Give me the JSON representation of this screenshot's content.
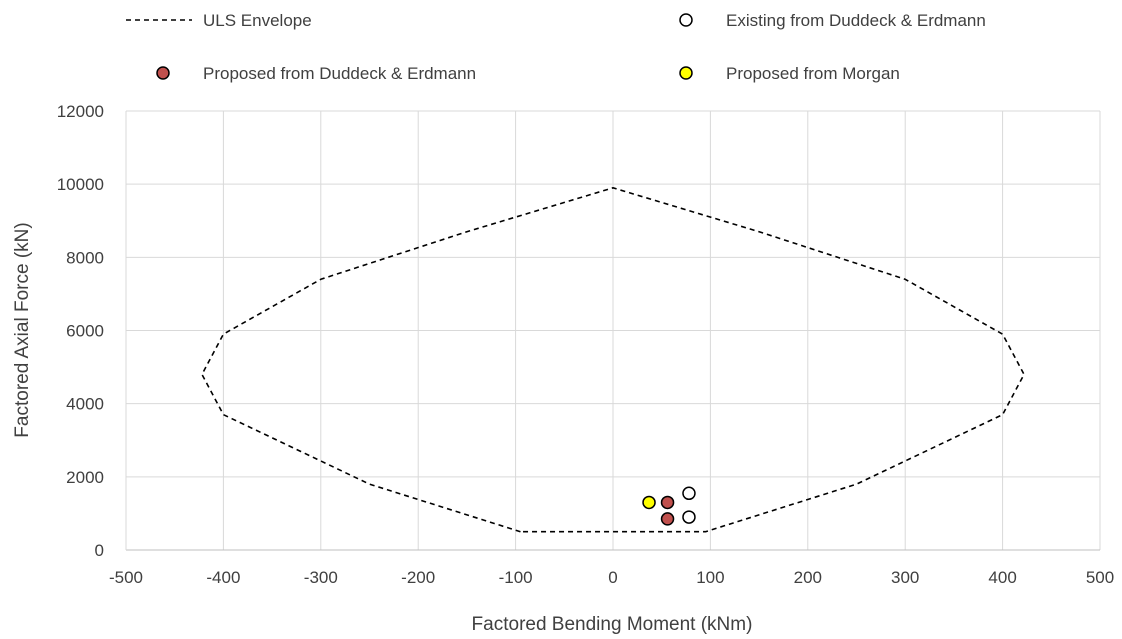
{
  "chart_data": {
    "type": "scatter",
    "title": "",
    "xlabel": "Factored Bending Moment (kNm)",
    "ylabel": "Factored Axial Force (kN)",
    "xlim": [
      -500,
      500
    ],
    "ylim": [
      0,
      12000
    ],
    "x_ticks": [
      -500,
      -400,
      -300,
      -200,
      -100,
      0,
      100,
      200,
      300,
      400,
      500
    ],
    "y_ticks": [
      0,
      2000,
      4000,
      6000,
      8000,
      10000,
      12000
    ],
    "grid": true,
    "legend_position": "top",
    "series": [
      {
        "name": "ULS Envelope",
        "style": "dashed-line",
        "color": "#000000",
        "x": [
          -95,
          -250,
          -400,
          -422,
          -400,
          -300,
          -150,
          0,
          150,
          300,
          400,
          422,
          400,
          250,
          95,
          -95
        ],
        "y": [
          500,
          1800,
          3700,
          4800,
          5900,
          7400,
          8700,
          9900,
          8700,
          7400,
          5900,
          4800,
          3700,
          1800,
          500,
          500
        ]
      },
      {
        "name": "Existing from Duddeck & Erdmann",
        "style": "marker",
        "color": "#ffffff",
        "x": [
          78,
          78
        ],
        "y": [
          1550,
          900
        ]
      },
      {
        "name": "Proposed from Duddeck & Erdmann",
        "style": "marker",
        "color": "#c0504d",
        "x": [
          56,
          56
        ],
        "y": [
          1300,
          850
        ]
      },
      {
        "name": "Proposed from Morgan",
        "style": "marker",
        "color": "#ffff00",
        "x": [
          37
        ],
        "y": [
          1300
        ]
      }
    ]
  }
}
